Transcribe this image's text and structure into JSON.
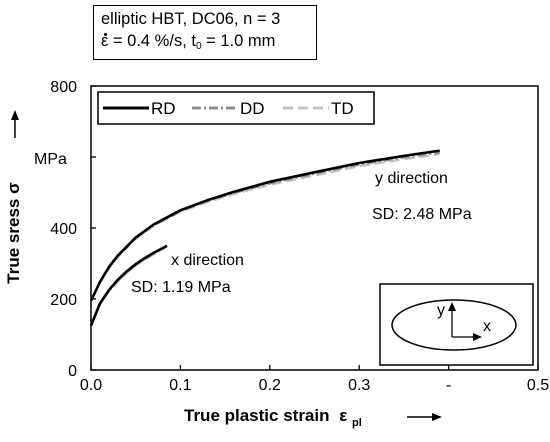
{
  "info": {
    "line1": "elliptic HBT, DC06, n = 3",
    "line2_symbol": "ε",
    "line2_rate": " = 0.4 %/s, t",
    "line2_sub": "0",
    "line2_thickness": " = 1.0 mm"
  },
  "chart_data": {
    "type": "line",
    "title": "",
    "xlabel": "True plastic strain",
    "xlabel_symbol": "ε",
    "xlabel_sub": "pl",
    "ylabel": "True sress σ",
    "yunit": "MPa",
    "xlim": [
      0,
      0.5
    ],
    "ylim": [
      0,
      800
    ],
    "x_ticks": [
      "0.0",
      "0.1",
      "0.2",
      "0.3",
      "-",
      "0.5"
    ],
    "y_ticks": [
      "0",
      "200",
      "400",
      "800"
    ],
    "grid": false,
    "legend_position": "top-left",
    "series": [
      {
        "name": "RD",
        "color": "#000000",
        "dash": "solid"
      },
      {
        "name": "DD",
        "color": "#8c8c8c",
        "dash": "dashdot"
      },
      {
        "name": "TD",
        "color": "#c4c4c4",
        "dash": "dashed"
      }
    ],
    "curves": [
      {
        "label": "y direction",
        "series": "RD",
        "x": [
          0.0,
          0.01,
          0.02,
          0.03,
          0.05,
          0.07,
          0.1,
          0.13,
          0.16,
          0.2,
          0.25,
          0.3,
          0.35,
          0.39
        ],
        "y": [
          195,
          248,
          290,
          322,
          373,
          410,
          450,
          478,
          502,
          530,
          557,
          583,
          603,
          618
        ]
      },
      {
        "label": "y direction",
        "series": "DD",
        "x": [
          0.0,
          0.01,
          0.02,
          0.03,
          0.05,
          0.07,
          0.1,
          0.13,
          0.16,
          0.2,
          0.25,
          0.3,
          0.35,
          0.39
        ],
        "y": [
          195,
          247,
          289,
          321,
          372,
          408,
          448,
          476,
          499,
          526,
          553,
          579,
          599,
          613
        ]
      },
      {
        "label": "y direction",
        "series": "TD",
        "x": [
          0.0,
          0.01,
          0.02,
          0.03,
          0.05,
          0.07,
          0.1,
          0.13,
          0.16,
          0.2,
          0.25,
          0.3,
          0.35,
          0.39
        ],
        "y": [
          195,
          246,
          287,
          319,
          370,
          406,
          446,
          473,
          496,
          522,
          548,
          574,
          594,
          608
        ]
      },
      {
        "label": "x direction",
        "series": "RD",
        "x": [
          0.0,
          0.01,
          0.02,
          0.03,
          0.04,
          0.05,
          0.06,
          0.07,
          0.085
        ],
        "y": [
          125,
          187,
          225,
          254,
          278,
          298,
          315,
          330,
          350
        ]
      },
      {
        "label": "x direction",
        "series": "DD",
        "x": [
          0.0,
          0.01,
          0.02,
          0.03,
          0.04,
          0.05,
          0.06,
          0.07,
          0.083
        ],
        "y": [
          125,
          186,
          224,
          252,
          276,
          296,
          313,
          328,
          346
        ]
      },
      {
        "label": "x direction",
        "series": "TD",
        "x": [
          0.0,
          0.01,
          0.02,
          0.03,
          0.04,
          0.05,
          0.06,
          0.07,
          0.08
        ],
        "y": [
          125,
          185,
          222,
          250,
          274,
          294,
          311,
          325,
          342
        ]
      }
    ],
    "annotations": {
      "y_direction": "y direction",
      "y_sd": "SD: 2.48 MPa",
      "x_direction": "x direction",
      "x_sd": "SD: 1.19 MPa",
      "inset_y": "y",
      "inset_x": "x"
    }
  }
}
